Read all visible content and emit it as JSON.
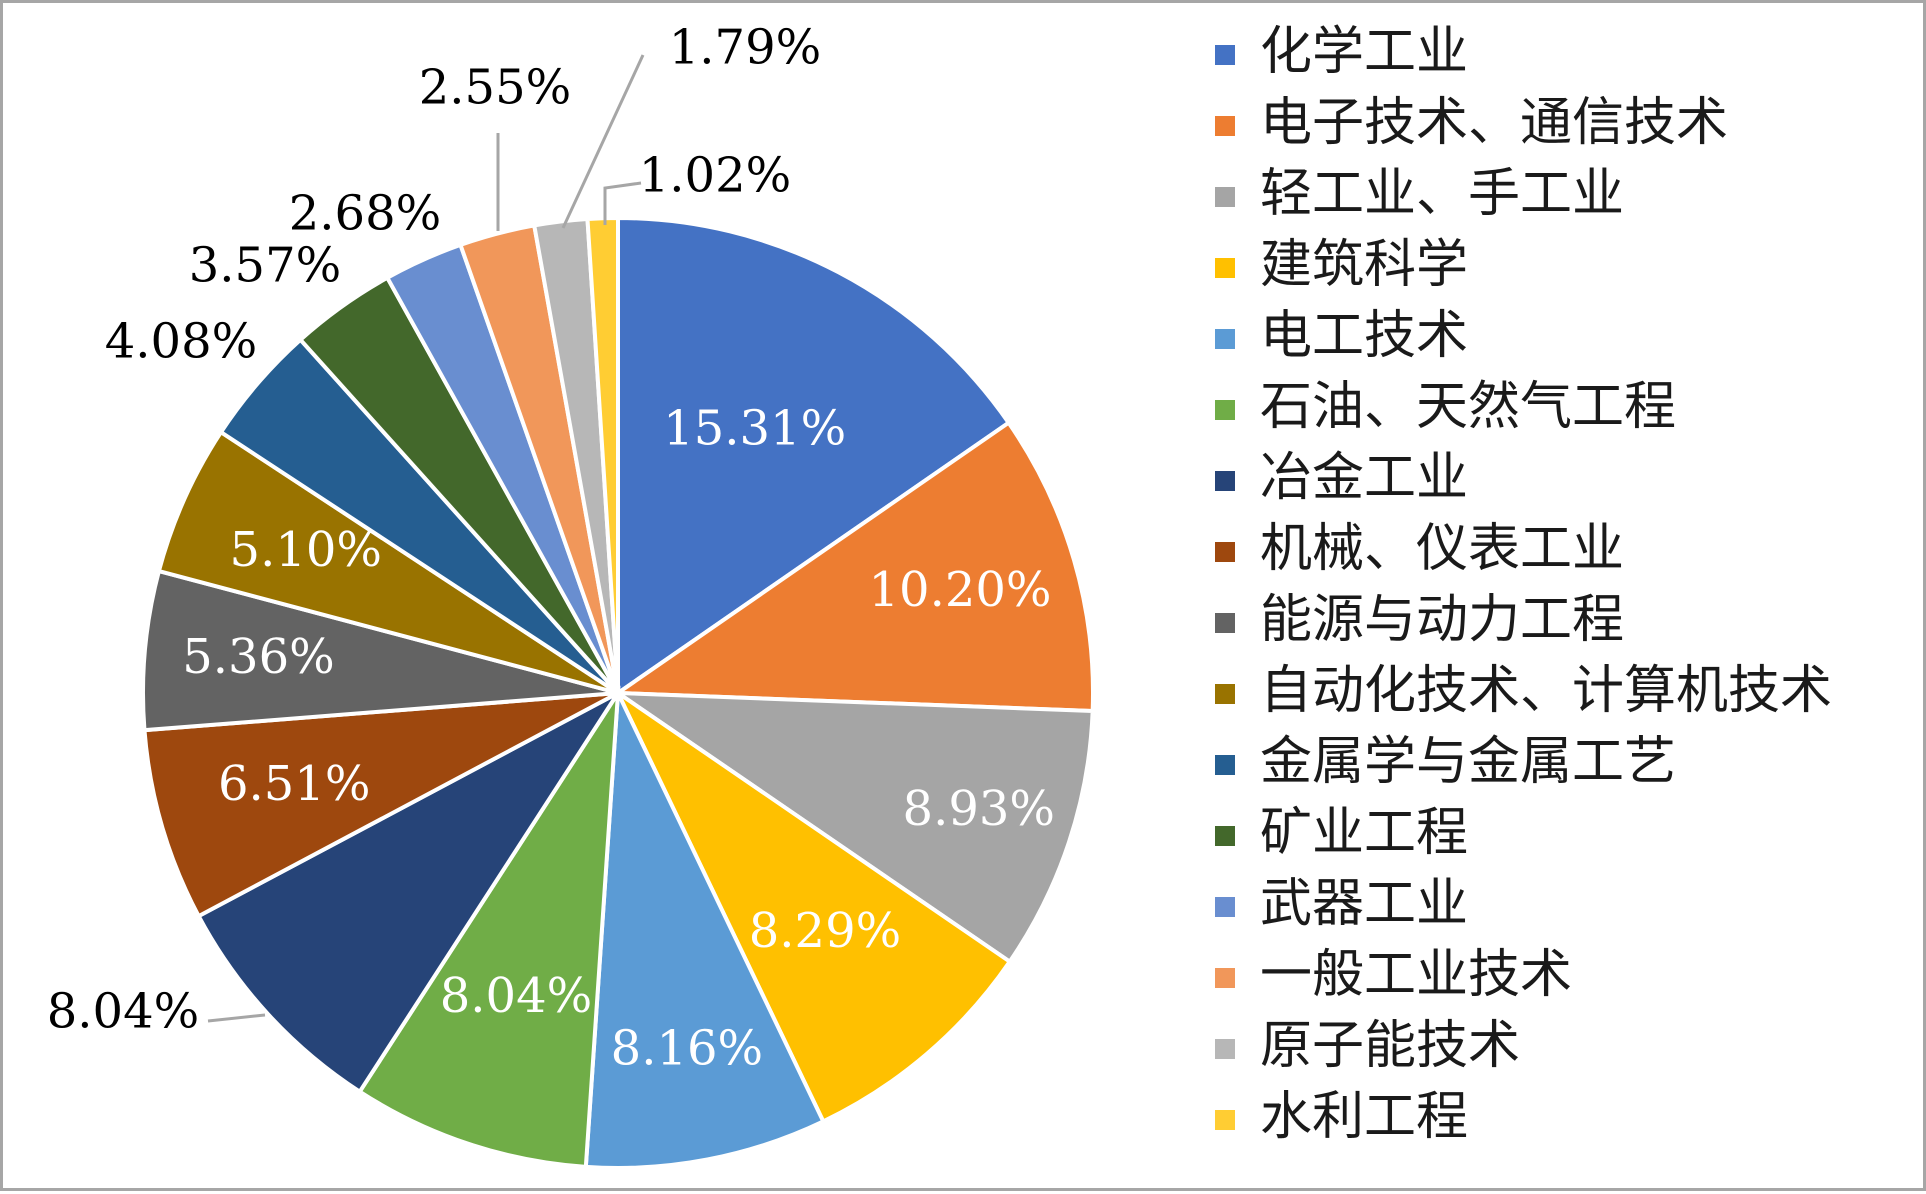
{
  "chart_data": {
    "type": "pie",
    "categories": [
      "化学工业",
      "电子技术、通信技术",
      "轻工业、手工业",
      "建筑科学",
      "电工技术",
      "石油、天然气工程",
      "冶金工业",
      "机械、仪表工业",
      "能源与动力工程",
      "自动化技术、计算机技术",
      "金属学与金属工艺",
      "矿业工程",
      "武器工业",
      "一般工业技术",
      "原子能技术",
      "水利工程"
    ],
    "values": [
      15.31,
      10.2,
      8.93,
      8.29,
      8.16,
      8.04,
      8.04,
      6.51,
      5.36,
      5.1,
      4.08,
      3.57,
      2.68,
      2.55,
      1.79,
      1.02
    ],
    "labels": [
      "15.31%",
      "10.20%",
      "8.93%",
      "8.29%",
      "8.16%",
      "8.04%",
      "8.04%",
      "6.51%",
      "5.36%",
      "5.10%",
      "4.08%",
      "3.57%",
      "2.68%",
      "2.55%",
      "1.79%",
      "1.02%"
    ],
    "colors": [
      "#4472C4",
      "#ED7D31",
      "#A5A5A5",
      "#FFC000",
      "#5B9BD5",
      "#70AD47",
      "#264478",
      "#9E480E",
      "#636363",
      "#997300",
      "#255E91",
      "#43682B",
      "#698ED0",
      "#F1975A",
      "#B7B7B7",
      "#FFCD33"
    ],
    "legend_position": "right",
    "title": ""
  }
}
